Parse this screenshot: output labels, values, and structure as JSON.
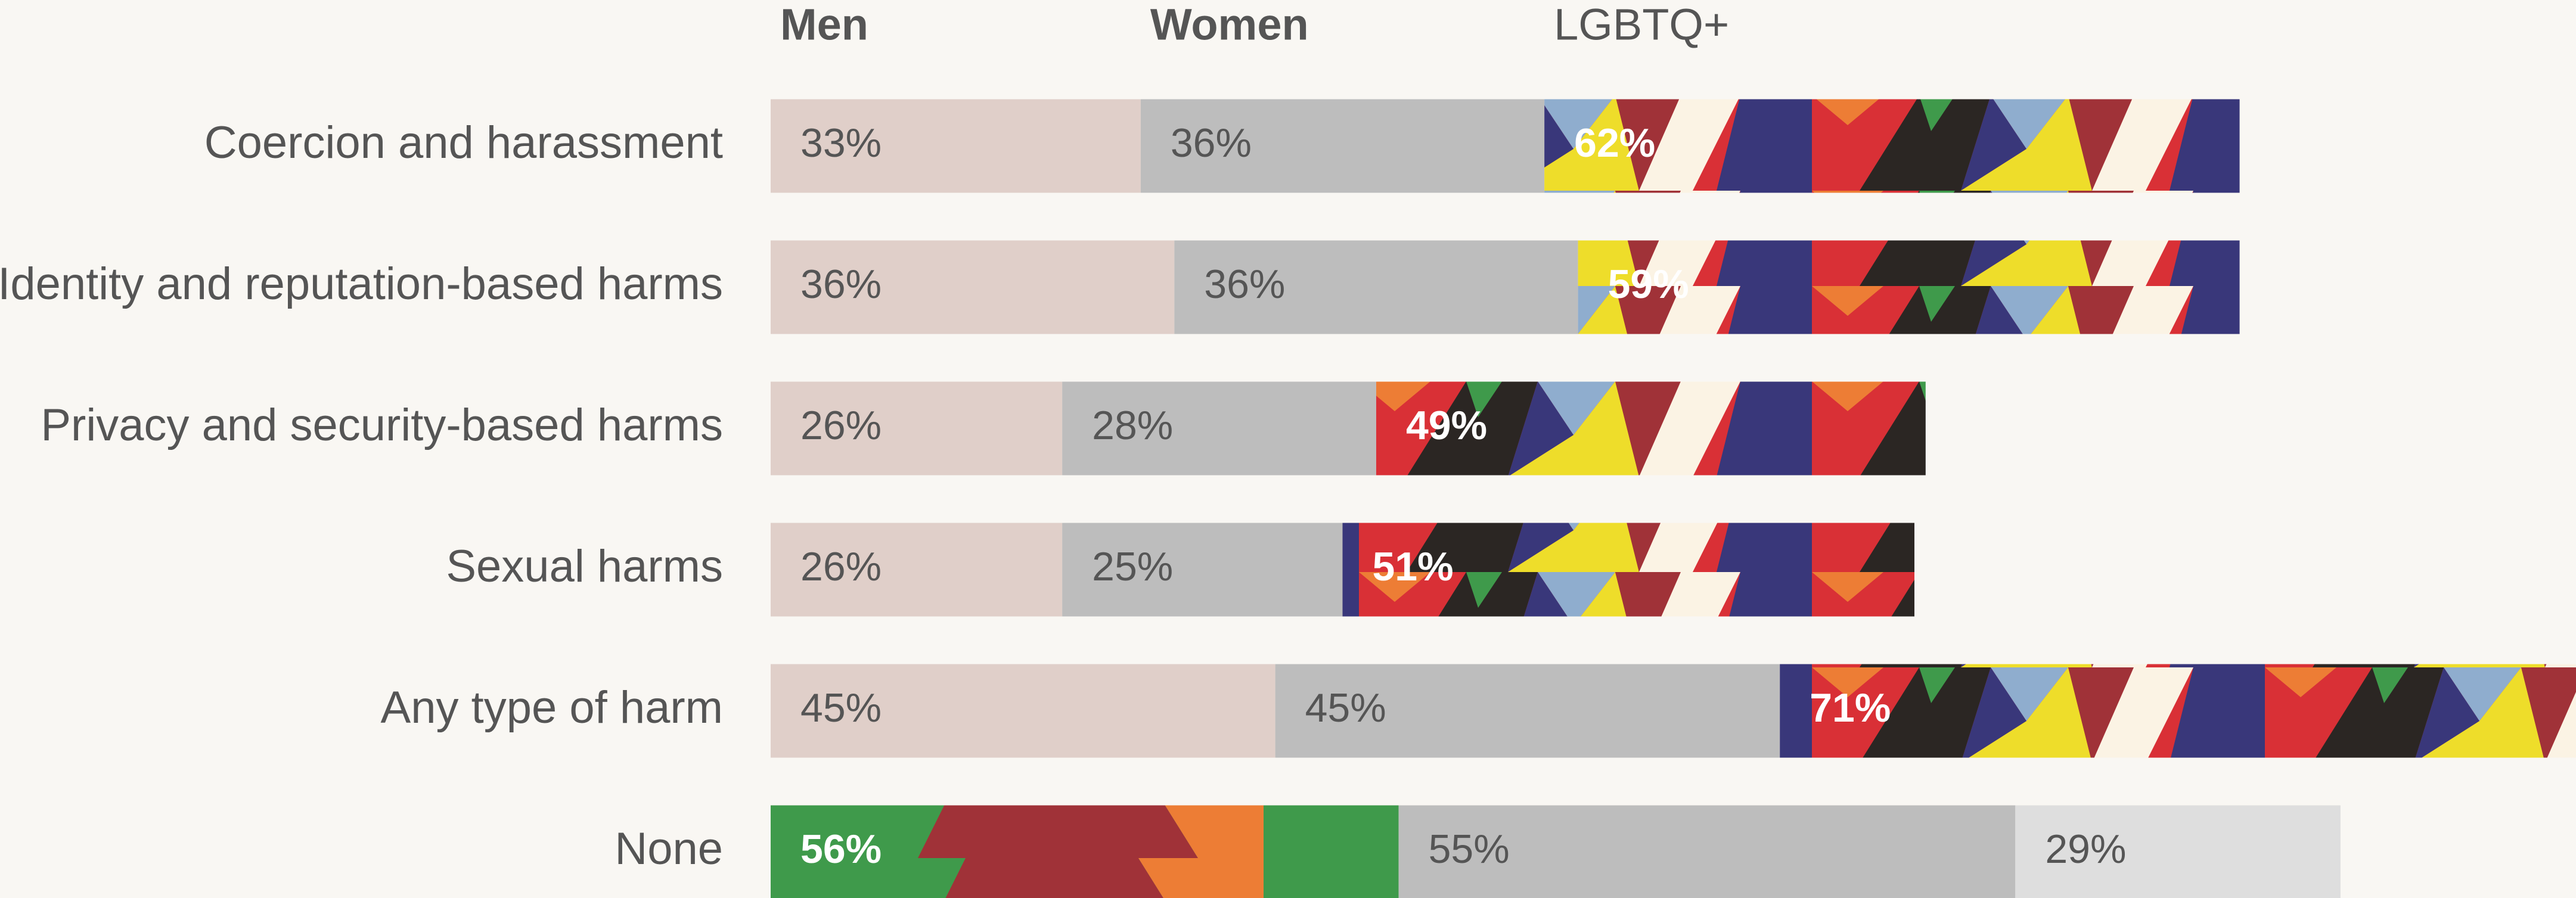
{
  "chart_data": {
    "type": "stacked-bar",
    "orientation": "horizontal",
    "categories": [
      "Coercion and harassment",
      "Identity and reputation-based harms",
      "Privacy and security-based harms",
      "Sexual harms",
      "Any type of harm",
      "None"
    ],
    "series": [
      {
        "name": "Men",
        "color": "#e0cfc9",
        "values": [
          33,
          36,
          26,
          26,
          45,
          56
        ],
        "value_labels": [
          "33%",
          "36%",
          "26%",
          "26%",
          "45%",
          "56%"
        ],
        "patterned": [
          false,
          false,
          false,
          false,
          false,
          true
        ]
      },
      {
        "name": "Women",
        "color": "#bdbdbd",
        "values": [
          36,
          36,
          28,
          25,
          45,
          55
        ],
        "value_labels": [
          "36%",
          "36%",
          "28%",
          "25%",
          "45%",
          "55%"
        ],
        "patterned": [
          false,
          false,
          false,
          false,
          false,
          false
        ]
      },
      {
        "name": "LGBTQ+",
        "color": "#dedede",
        "values": [
          62,
          59,
          49,
          51,
          71,
          29
        ],
        "value_labels": [
          "62%",
          "59%",
          "49%",
          "51%",
          "71%",
          "29%"
        ],
        "patterned": [
          true,
          true,
          true,
          true,
          true,
          false
        ]
      }
    ]
  }
}
